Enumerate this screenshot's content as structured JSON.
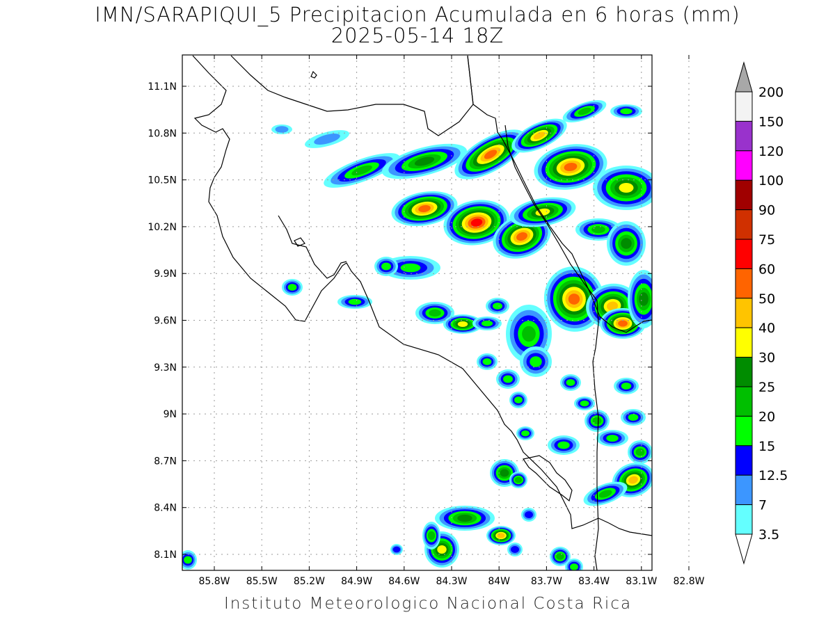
{
  "title": {
    "line1": "IMN/SARAPIQUI_5 Precipitacion Acumulada en 6 horas (mm)",
    "line2": "2025-05-14 18Z"
  },
  "footer": "Instituto Meteorologico Nacional Costa Rica",
  "map": {
    "lon_range": [
      -86.05,
      -82.65
    ],
    "lat_range": [
      8.0,
      11.3
    ],
    "lat_ticks": [
      "11.1N",
      "10.8N",
      "10.5N",
      "10.2N",
      "9.9N",
      "9.6N",
      "9.3N",
      "9N",
      "8.7N",
      "8.4N",
      "8.1N"
    ],
    "lon_ticks": [
      "85.8W",
      "85.5W",
      "85.2W",
      "84.9W",
      "84.6W",
      "84.3W",
      "84W",
      "83.7W",
      "83.4W",
      "83.1W",
      "82.8W"
    ],
    "grid": "dotted"
  },
  "legend": {
    "top_label": "200",
    "levels": [
      {
        "label": "150",
        "color": "#f3f3f3"
      },
      {
        "label": "120",
        "color": "#9932cc"
      },
      {
        "label": "100",
        "color": "#ff00ff"
      },
      {
        "label": "90",
        "color": "#a00000"
      },
      {
        "label": "75",
        "color": "#d03000"
      },
      {
        "label": "60",
        "color": "#ff0000"
      },
      {
        "label": "50",
        "color": "#ff6400"
      },
      {
        "label": "40",
        "color": "#ffc400"
      },
      {
        "label": "30",
        "color": "#ffff00"
      },
      {
        "label": "25",
        "color": "#008c00"
      },
      {
        "label": "20",
        "color": "#00bf00"
      },
      {
        "label": "15",
        "color": "#00ff00"
      },
      {
        "label": "12.5",
        "color": "#0000ff"
      },
      {
        "label": "7",
        "color": "#3c96ff"
      },
      {
        "label": "3.5",
        "color": "#64ffff"
      }
    ],
    "top_cap_color": "#a8a8a8",
    "bottom_cap_color": "#ffffff"
  }
}
